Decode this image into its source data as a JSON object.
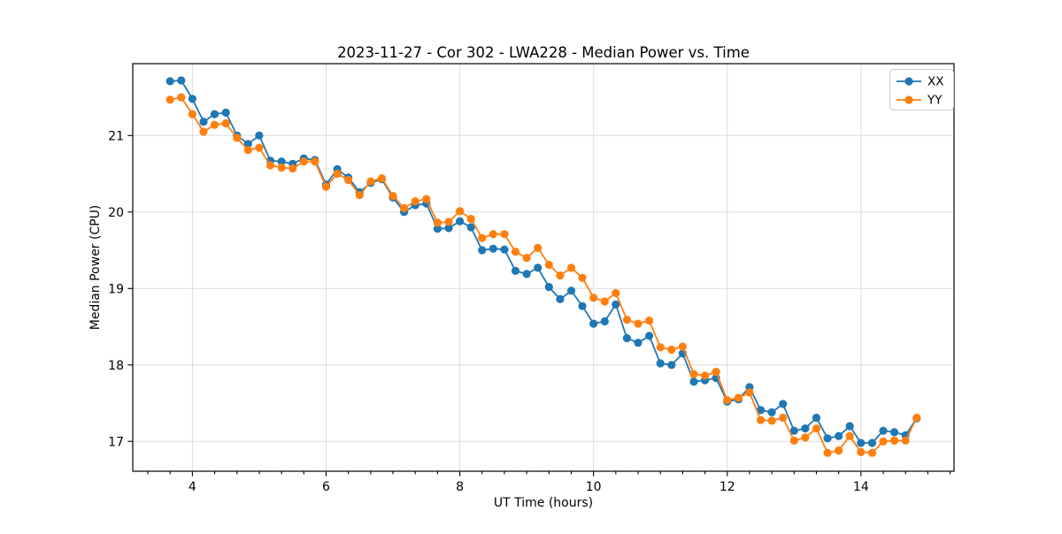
{
  "chart_data": {
    "type": "line",
    "title": "2023-11-27 - Cor 302 - LWA228 - Median Power vs. Time",
    "xlabel": "UT Time (hours)",
    "ylabel": "Median Power (CPU)",
    "xlim": [
      3.108,
      15.392
    ],
    "ylim": [
      16.61,
      21.94
    ],
    "xticks": [
      4,
      6,
      8,
      10,
      12,
      14
    ],
    "yticks": [
      17,
      18,
      19,
      20,
      21
    ],
    "x_minor_step": 0.3333333,
    "grid": true,
    "legend_position": "upper right",
    "marker": "circle",
    "x": [
      3.667,
      3.833,
      4.0,
      4.167,
      4.333,
      4.5,
      4.667,
      4.833,
      5.0,
      5.167,
      5.333,
      5.5,
      5.667,
      5.833,
      6.0,
      6.167,
      6.333,
      6.5,
      6.667,
      6.833,
      7.0,
      7.167,
      7.333,
      7.5,
      7.667,
      7.833,
      8.0,
      8.167,
      8.333,
      8.5,
      8.667,
      8.833,
      9.0,
      9.167,
      9.333,
      9.5,
      9.667,
      9.833,
      10.0,
      10.167,
      10.333,
      10.5,
      10.667,
      10.833,
      11.0,
      11.167,
      11.333,
      11.5,
      11.667,
      11.833,
      12.0,
      12.167,
      12.333,
      12.5,
      12.667,
      12.833,
      13.0,
      13.167,
      13.333,
      13.5,
      13.667,
      13.833,
      14.0,
      14.167,
      14.333,
      14.5,
      14.667,
      14.833
    ],
    "series": [
      {
        "name": "XX",
        "color": "#1f77b4",
        "values": [
          21.71,
          21.72,
          21.48,
          21.18,
          21.28,
          21.3,
          21.0,
          20.89,
          21.0,
          20.67,
          20.66,
          20.63,
          20.7,
          20.68,
          20.36,
          20.56,
          20.45,
          20.26,
          20.38,
          20.43,
          20.19,
          20.0,
          20.09,
          20.11,
          19.78,
          19.79,
          19.88,
          19.8,
          19.5,
          19.52,
          19.51,
          19.23,
          19.19,
          19.27,
          19.02,
          18.86,
          18.97,
          18.77,
          18.54,
          18.57,
          18.79,
          18.35,
          18.29,
          18.38,
          18.02,
          18.0,
          18.15,
          17.78,
          17.8,
          17.83,
          17.52,
          17.55,
          17.71,
          17.41,
          17.38,
          17.49,
          17.14,
          17.17,
          17.31,
          17.04,
          17.07,
          17.2,
          16.98,
          16.98,
          17.14,
          17.12,
          17.08,
          17.3
        ]
      },
      {
        "name": "YY",
        "color": "#ff7f0e",
        "values": [
          21.47,
          21.5,
          21.28,
          21.05,
          21.14,
          21.16,
          20.97,
          20.81,
          20.84,
          20.61,
          20.58,
          20.57,
          20.66,
          20.66,
          20.33,
          20.5,
          20.42,
          20.22,
          20.4,
          20.44,
          20.21,
          20.05,
          20.14,
          20.17,
          19.86,
          19.87,
          20.01,
          19.91,
          19.66,
          19.71,
          19.71,
          19.48,
          19.4,
          19.53,
          19.31,
          19.17,
          19.27,
          19.14,
          18.88,
          18.83,
          18.94,
          18.59,
          18.54,
          18.58,
          18.23,
          18.2,
          18.24,
          17.88,
          17.86,
          17.91,
          17.54,
          17.57,
          17.64,
          17.28,
          17.27,
          17.31,
          17.01,
          17.05,
          17.17,
          16.85,
          16.88,
          17.07,
          16.86,
          16.85,
          17.0,
          17.01,
          17.01,
          17.31
        ]
      }
    ]
  },
  "colors": {
    "grid": "#dcdcdc",
    "spine": "#000000",
    "background": "#ffffff",
    "series_xx": "#1f77b4",
    "series_yy": "#ff7f0e"
  }
}
